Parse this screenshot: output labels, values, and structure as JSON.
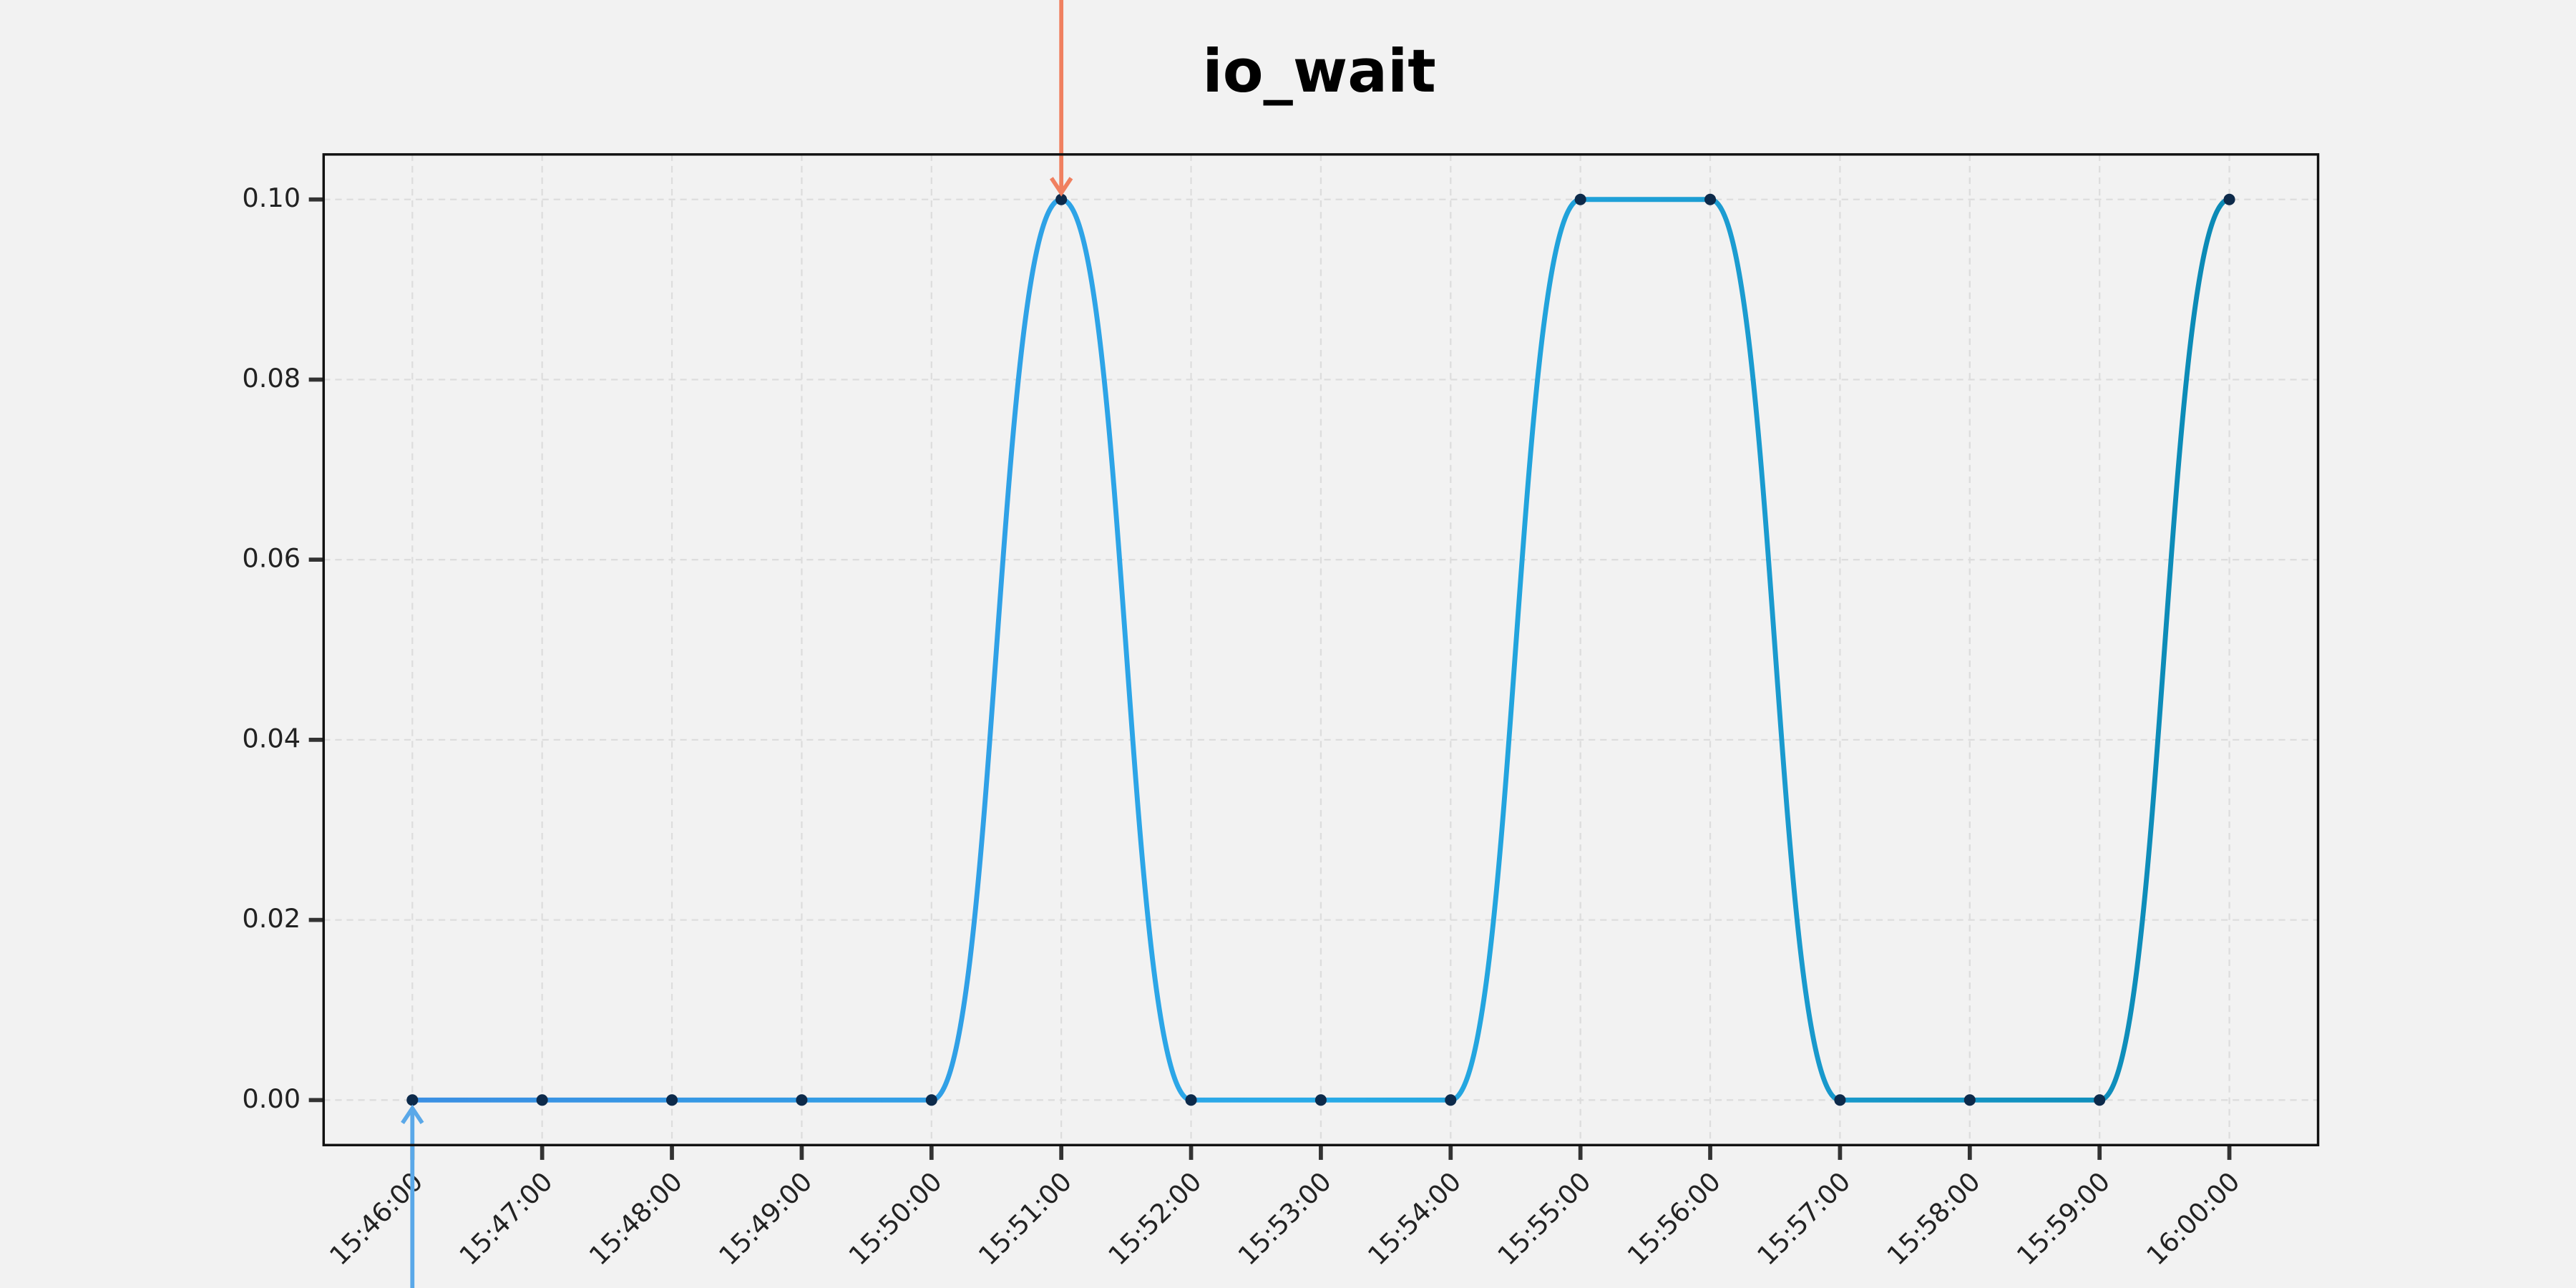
{
  "chart_data": {
    "type": "line",
    "title": "io_wait",
    "categories": [
      "15:46:00",
      "15:47:00",
      "15:48:00",
      "15:49:00",
      "15:50:00",
      "15:51:00",
      "15:52:00",
      "15:53:00",
      "15:54:00",
      "15:55:00",
      "15:56:00",
      "15:57:00",
      "15:58:00",
      "15:59:00",
      "16:00:00"
    ],
    "values": [
      0,
      0,
      0,
      0,
      0,
      0.1,
      0,
      0,
      0,
      0.1,
      0.1,
      0,
      0,
      0,
      0.1
    ],
    "color_stops": [
      "#3b8fe3",
      "#29abe8",
      "#0b8ab5"
    ],
    "marker_color": "#0d2a4a",
    "ylim": [
      -0.005,
      0.105
    ],
    "yticks": [
      {
        "value": 0,
        "label": "0.00"
      },
      {
        "value": 0.02,
        "label": "0.02"
      },
      {
        "value": 0.04,
        "label": "0.04"
      },
      {
        "value": 0.06,
        "label": "0.06"
      },
      {
        "value": 0.08,
        "label": "0.08"
      },
      {
        "value": 0.1,
        "label": "0.10"
      }
    ],
    "grid": true
  }
}
